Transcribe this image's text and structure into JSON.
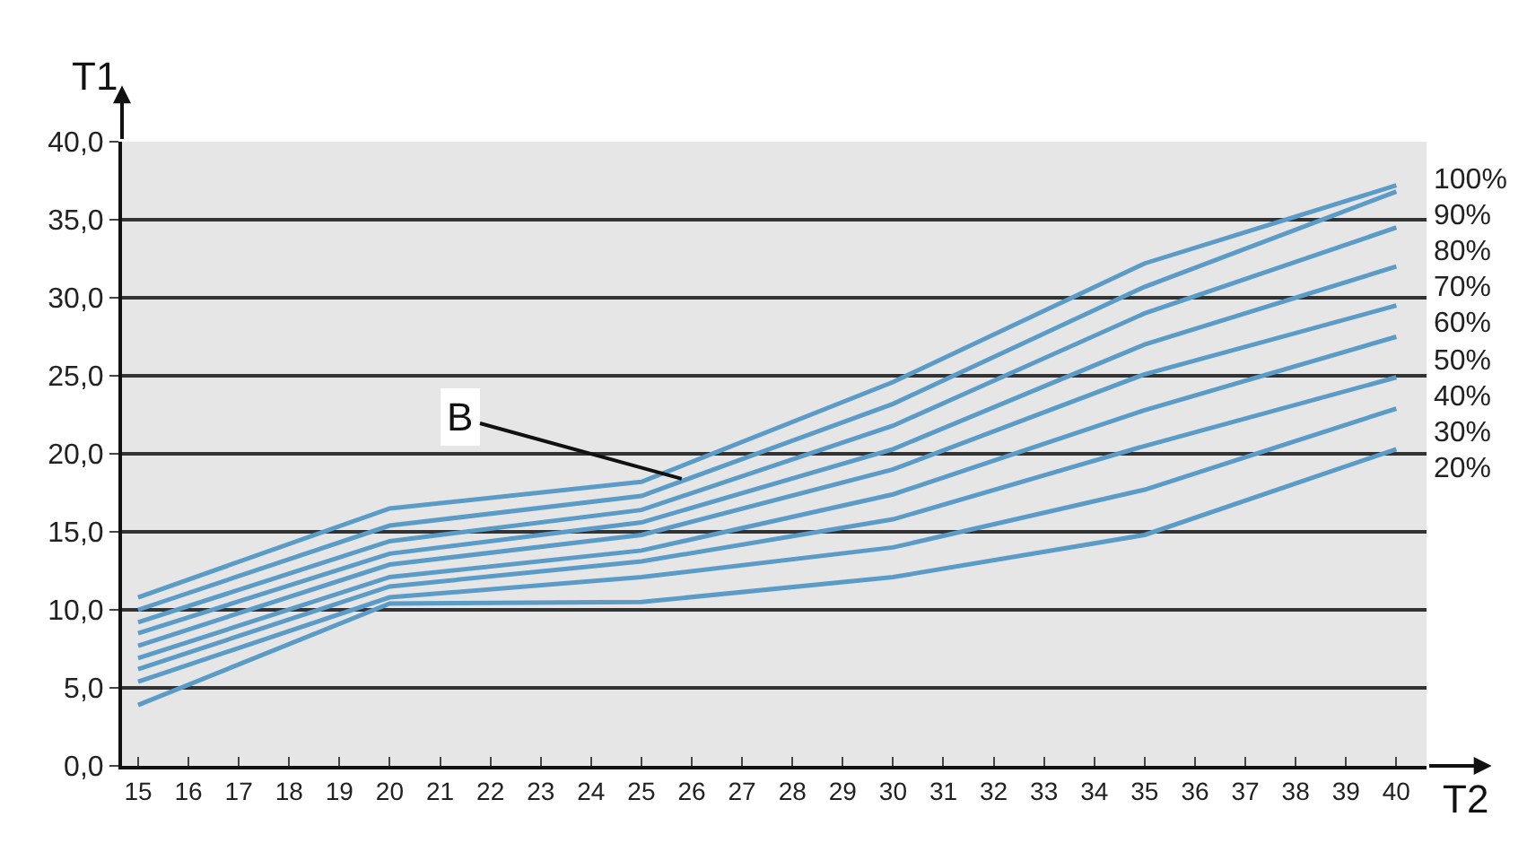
{
  "chart_data": {
    "type": "line",
    "xlabel": "T2",
    "ylabel": "T1",
    "x": [
      15,
      20,
      25,
      30,
      35,
      40
    ],
    "xlim": [
      14.68,
      40.6
    ],
    "xticks": [
      15,
      16,
      17,
      18,
      19,
      20,
      21,
      22,
      23,
      24,
      25,
      26,
      27,
      28,
      29,
      30,
      31,
      32,
      33,
      34,
      35,
      36,
      37,
      38,
      39,
      40
    ],
    "ylim": [
      0,
      40
    ],
    "yticks": [
      {
        "value": 0,
        "label": "0,0"
      },
      {
        "value": 5,
        "label": "5,0"
      },
      {
        "value": 10,
        "label": "10,0"
      },
      {
        "value": 15,
        "label": "15,0"
      },
      {
        "value": 20,
        "label": "20,0"
      },
      {
        "value": 25,
        "label": "25,0"
      },
      {
        "value": 30,
        "label": "30,0"
      },
      {
        "value": 35,
        "label": "35,0"
      },
      {
        "value": 40,
        "label": "40,0"
      }
    ],
    "grid": "y",
    "legend": false,
    "marker": "none",
    "line_style": "solid",
    "series": [
      {
        "name": "100%",
        "color": "#5b9bc8",
        "values": [
          10.8,
          16.5,
          18.2,
          24.6,
          32.2,
          37.2
        ]
      },
      {
        "name": "90%",
        "color": "#5b9bc8",
        "values": [
          10.0,
          15.4,
          17.3,
          23.2,
          30.7,
          36.8
        ]
      },
      {
        "name": "80%",
        "color": "#5b9bc8",
        "values": [
          9.2,
          14.4,
          16.4,
          21.8,
          29.0,
          34.5
        ]
      },
      {
        "name": "70%",
        "color": "#5b9bc8",
        "values": [
          8.5,
          13.6,
          15.6,
          20.3,
          27.0,
          32.0
        ]
      },
      {
        "name": "60%",
        "color": "#5b9bc8",
        "values": [
          7.7,
          12.9,
          14.8,
          19.0,
          25.1,
          29.5
        ]
      },
      {
        "name": "50%",
        "color": "#5b9bc8",
        "values": [
          6.9,
          12.1,
          13.8,
          17.4,
          22.8,
          27.5
        ]
      },
      {
        "name": "40%",
        "color": "#5b9bc8",
        "values": [
          6.2,
          11.5,
          13.1,
          15.8,
          20.5,
          24.9
        ]
      },
      {
        "name": "30%",
        "color": "#5b9bc8",
        "values": [
          5.4,
          10.8,
          12.1,
          14.0,
          17.7,
          22.9
        ]
      },
      {
        "name": "20%",
        "color": "#5b9bc8",
        "values": [
          3.9,
          10.4,
          10.5,
          12.1,
          14.8,
          20.3
        ]
      }
    ],
    "annotations": [
      {
        "text": "B",
        "x": 25.8,
        "y": 18.4
      }
    ]
  }
}
